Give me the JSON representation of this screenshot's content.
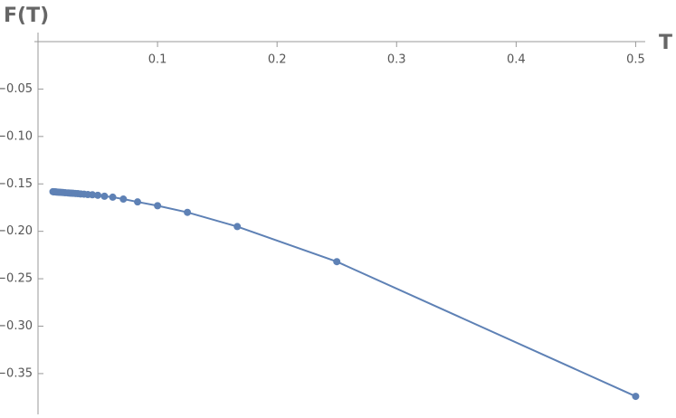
{
  "chart_data": {
    "type": "line",
    "x_label": "T",
    "y_label": "F(T)",
    "x": [
      0.0125,
      0.0132,
      0.0139,
      0.0147,
      0.0156,
      0.0167,
      0.0179,
      0.0192,
      0.0208,
      0.0227,
      0.025,
      0.0263,
      0.0278,
      0.0294,
      0.03125,
      0.0333,
      0.0357,
      0.0385,
      0.0417,
      0.0455,
      0.05,
      0.0556,
      0.0625,
      0.0714,
      0.0833,
      0.1,
      0.125,
      0.1667,
      0.25,
      0.5
    ],
    "series": [
      {
        "color": "#5e81b5",
        "values": [
          -0.1582,
          -0.1583,
          -0.1584,
          -0.1585,
          -0.1586,
          -0.1587,
          -0.1588,
          -0.1589,
          -0.1591,
          -0.1593,
          -0.1595,
          -0.1596,
          -0.1598,
          -0.1599,
          -0.1601,
          -0.1603,
          -0.1606,
          -0.1608,
          -0.1612,
          -0.1615,
          -0.162,
          -0.163,
          -0.164,
          -0.166,
          -0.169,
          -0.173,
          -0.18,
          -0.195,
          -0.232,
          -0.374
        ]
      }
    ],
    "xlim": [
      0,
      0.508
    ],
    "ylim": [
      -0.393,
      0
    ],
    "xticks": [
      0.1,
      0.2,
      0.3,
      0.4,
      0.5
    ],
    "yticks": [
      {
        "value": -0.05,
        "label": "−0.05"
      },
      {
        "value": -0.1,
        "label": "−0.10"
      },
      {
        "value": -0.15,
        "label": "−0.15"
      },
      {
        "value": -0.2,
        "label": "−0.20"
      },
      {
        "value": -0.25,
        "label": "−0.25"
      },
      {
        "value": -0.3,
        "label": "−0.30"
      },
      {
        "value": -0.35,
        "label": "−0.35"
      }
    ]
  }
}
